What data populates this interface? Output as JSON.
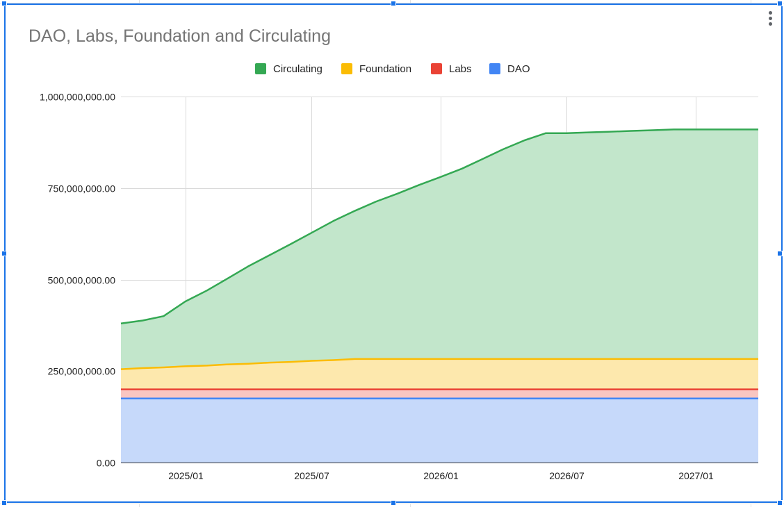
{
  "chart_data": {
    "type": "area",
    "stacked": true,
    "title": "DAO, Labs, Foundation and Circulating",
    "xlabel": "",
    "ylabel": "",
    "x": [
      "2024-10-01",
      "2024-11-01",
      "2024-12-01",
      "2025-01-01",
      "2025-02-01",
      "2025-03-01",
      "2025-04-01",
      "2025-05-01",
      "2025-06-01",
      "2025-07-01",
      "2025-08-01",
      "2025-09-01",
      "2025-10-01",
      "2025-11-01",
      "2025-12-01",
      "2026-01-01",
      "2026-02-01",
      "2026-03-01",
      "2026-04-01",
      "2026-05-01",
      "2026-06-01",
      "2026-07-01",
      "2026-08-01",
      "2026-09-01",
      "2026-10-01",
      "2026-11-01",
      "2026-12-01",
      "2027-01-01",
      "2027-02-01",
      "2027-03-01",
      "2027-04-01"
    ],
    "x_ticks": [
      "2025/01",
      "2025/07",
      "2026/01",
      "2026/07",
      "2027/01"
    ],
    "x_tick_dates": [
      "2025-01-01",
      "2025-07-01",
      "2026-01-01",
      "2026-07-01",
      "2027-01-01"
    ],
    "y_ticks": [
      "0.00",
      "250,000,000.00",
      "500,000,000.00",
      "750,000,000.00",
      "1,000,000,000.00"
    ],
    "y_tick_values": [
      0,
      250000000,
      500000000,
      750000000,
      1000000000
    ],
    "ylim": [
      0,
      1000000000
    ],
    "grid": true,
    "legend_position": "top",
    "series": [
      {
        "name": "DAO",
        "color": "#4285f4",
        "fill": "#c6d9fa",
        "values": [
          175000000,
          175000000,
          175000000,
          175000000,
          175000000,
          175000000,
          175000000,
          175000000,
          175000000,
          175000000,
          175000000,
          175000000,
          175000000,
          175000000,
          175000000,
          175000000,
          175000000,
          175000000,
          175000000,
          175000000,
          175000000,
          175000000,
          175000000,
          175000000,
          175000000,
          175000000,
          175000000,
          175000000,
          175000000,
          175000000,
          175000000
        ]
      },
      {
        "name": "Labs",
        "color": "#ea4335",
        "fill": "#f9c6c2",
        "values": [
          25000000,
          25000000,
          25000000,
          25000000,
          25000000,
          25000000,
          25000000,
          25000000,
          25000000,
          25000000,
          25000000,
          25000000,
          25000000,
          25000000,
          25000000,
          25000000,
          25000000,
          25000000,
          25000000,
          25000000,
          25000000,
          25000000,
          25000000,
          25000000,
          25000000,
          25000000,
          25000000,
          25000000,
          25000000,
          25000000,
          25000000
        ]
      },
      {
        "name": "Foundation",
        "color": "#fbbc04",
        "fill": "#fde8ad",
        "values": [
          55000000,
          58000000,
          60000000,
          63000000,
          65000000,
          68000000,
          70000000,
          73000000,
          75000000,
          78000000,
          80000000,
          83000000,
          83000000,
          83000000,
          83000000,
          83000000,
          83000000,
          83000000,
          83000000,
          83000000,
          83000000,
          83000000,
          83000000,
          83000000,
          83000000,
          83000000,
          83000000,
          83000000,
          83000000,
          83000000,
          83000000
        ]
      },
      {
        "name": "Circulating",
        "color": "#34a853",
        "fill": "#c2e6cb",
        "values": [
          125000000,
          130000000,
          140000000,
          177000000,
          205000000,
          233000000,
          266000000,
          293000000,
          322000000,
          350000000,
          380000000,
          405000000,
          430000000,
          452000000,
          475000000,
          497000000,
          520000000,
          545000000,
          573000000,
          597000000,
          617000000,
          617000000,
          619000000,
          621000000,
          623000000,
          625000000,
          627000000,
          627000000,
          627000000,
          627000000,
          627000000
        ]
      }
    ],
    "legend_order": [
      "Circulating",
      "Foundation",
      "Labs",
      "DAO"
    ]
  }
}
